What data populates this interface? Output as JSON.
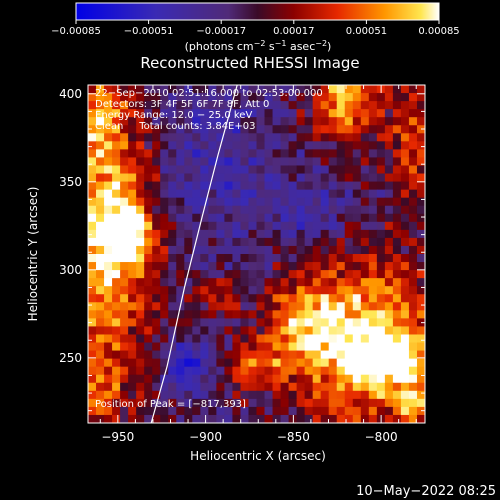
{
  "chart_data": {
    "type": "heatmap",
    "title": "Reconstructed RHESSI Image",
    "xlabel": "Heliocentric X (arcsec)",
    "ylabel": "Heliocentric Y (arcsec)",
    "xlim": [
      -967,
      -775
    ],
    "ylim": [
      213,
      405
    ],
    "x_ticks": [
      -950,
      -900,
      -850,
      -800
    ],
    "x_tick_labels": [
      "−950",
      "−900",
      "−850",
      "−800"
    ],
    "y_ticks": [
      250,
      300,
      350,
      400
    ],
    "y_tick_labels": [
      "250",
      "300",
      "350",
      "400"
    ],
    "colorbar": {
      "range": [
        -0.00085,
        0.00085
      ],
      "ticks": [
        -0.00085,
        -0.00051,
        -0.00017,
        0.00017,
        0.00051,
        0.00085
      ],
      "tick_labels": [
        "−0.00085",
        "−0.00051",
        "−0.00017",
        "0.00017",
        "0.00051",
        "0.00085"
      ],
      "units_text": "(photons cm",
      "units_sup1": "−2",
      "units_mid1": " s",
      "units_sup2": "−1",
      "units_mid2": " asec",
      "units_sup3": "−2",
      "units_end": ")"
    },
    "annotations": [
      "22−Sep−2010 02:51:16.000 to 02:53:00.000",
      "Detectors: 3F 4F 5F 6F 7F 8F, Att 0",
      "Energy Range: 12.0 − 25.0 keV",
      "Clean     Total counts: 3.84E+03"
    ],
    "peak_label": "Position of Peak = [−817,393]",
    "peak": [
      -817,
      393
    ],
    "limb_curve": [
      [
        -931,
        213
      ],
      [
        -922,
        245
      ],
      [
        -912,
        290
      ],
      [
        -902,
        330
      ],
      [
        -893,
        365
      ],
      [
        -882,
        405
      ]
    ],
    "sources": [
      {
        "x": -957,
        "y": 320,
        "sx": 22,
        "sy": 55,
        "amp": 0.00085
      },
      {
        "x": -945,
        "y": 320,
        "sx": 9,
        "sy": 11,
        "amp": 0.00075
      },
      {
        "x": -812,
        "y": 260,
        "sx": 28,
        "sy": 35,
        "amp": 0.00085
      },
      {
        "x": -795,
        "y": 250,
        "sx": 16,
        "sy": 14,
        "amp": 0.0006
      },
      {
        "x": -845,
        "y": 268,
        "sx": 14,
        "sy": 16,
        "amp": 0.0005
      },
      {
        "x": -872,
        "y": 245,
        "sx": 12,
        "sy": 10,
        "amp": 0.00045
      },
      {
        "x": -820,
        "y": 398,
        "sx": 13,
        "sy": 18,
        "amp": 0.0008
      },
      {
        "x": -962,
        "y": 388,
        "sx": 9,
        "sy": 16,
        "amp": 0.0005
      },
      {
        "x": -783,
        "y": 370,
        "sx": 8,
        "sy": 26,
        "amp": 0.0005
      },
      {
        "x": -962,
        "y": 230,
        "sx": 10,
        "sy": 14,
        "amp": 0.00045
      },
      {
        "x": -893,
        "y": 283,
        "sx": 9,
        "sy": 8,
        "amp": 0.00035
      },
      {
        "x": -780,
        "y": 222,
        "sx": 8,
        "sy": 9,
        "amp": 0.0004
      },
      {
        "x": -912,
        "y": 245,
        "sx": 10,
        "sy": 10,
        "amp": -0.0005
      },
      {
        "x": -900,
        "y": 360,
        "sx": 22,
        "sy": 30,
        "amp": -0.0003
      },
      {
        "x": -840,
        "y": 330,
        "sx": 18,
        "sy": 14,
        "amp": -0.0003
      }
    ],
    "grid": false
  },
  "footer": {
    "timestamp": "10−May−2022 08:25"
  }
}
